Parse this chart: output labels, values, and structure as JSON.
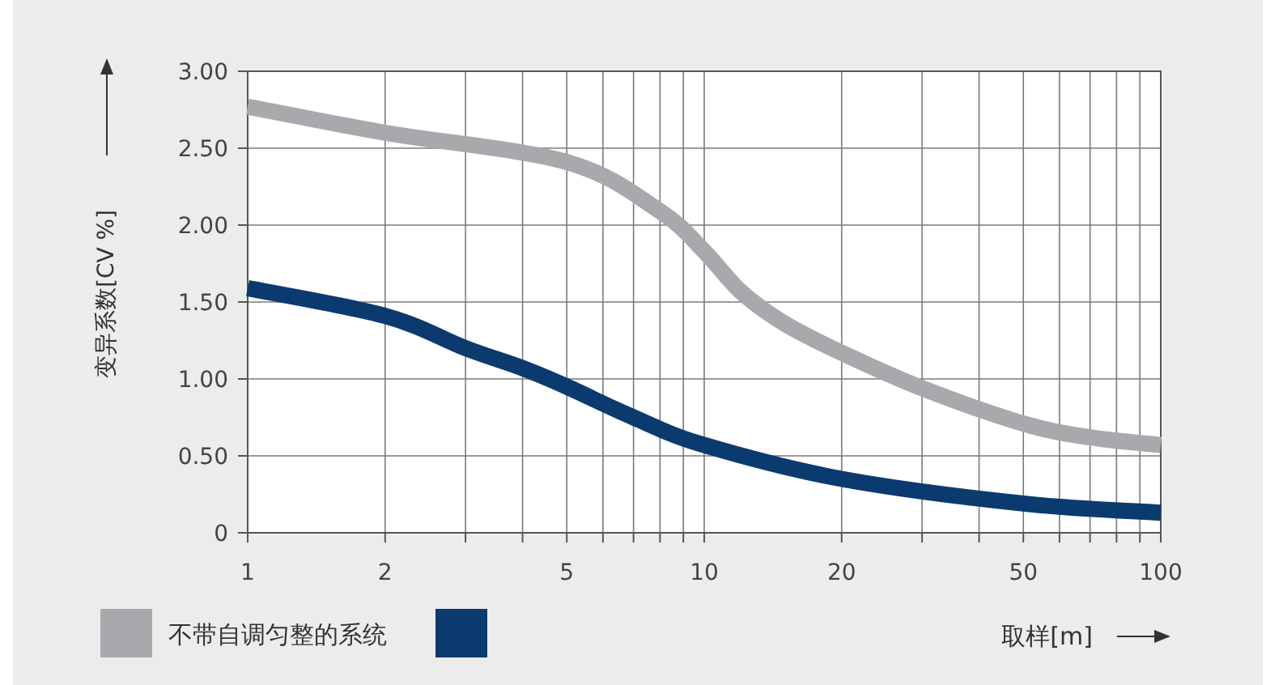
{
  "chart_data": {
    "type": "line",
    "ylabel": "变异系数[CV %]",
    "xlabel": "取样[m]",
    "series": [
      {
        "name": "不带自调匀整的系统",
        "color": "#a7a9ac",
        "x": [
          1,
          2,
          5,
          8,
          10,
          12,
          15,
          20,
          30,
          50,
          70,
          100
        ],
        "values": [
          2.77,
          2.6,
          2.41,
          2.09,
          1.83,
          1.57,
          1.36,
          1.17,
          0.94,
          0.71,
          0.62,
          0.57
        ]
      },
      {
        "color": "#0b3a6e",
        "x": [
          1,
          2,
          3,
          4,
          5,
          7,
          10,
          20,
          50,
          100
        ],
        "values": [
          1.59,
          1.41,
          1.2,
          1.07,
          0.95,
          0.75,
          0.57,
          0.35,
          0.19,
          0.13
        ]
      }
    ],
    "xlim": [
      1,
      100
    ],
    "ylim": [
      0,
      3
    ],
    "xticks": [
      1,
      2,
      {
        "value": 3,
        "label": null
      },
      {
        "value": 4,
        "label": null
      },
      5,
      {
        "value": 6,
        "label": null
      },
      {
        "value": 7,
        "label": null
      },
      {
        "value": 8,
        "label": null
      },
      {
        "value": 9,
        "label": null
      },
      10,
      20,
      {
        "value": 30,
        "label": null
      },
      {
        "value": 40,
        "label": null
      },
      50,
      {
        "value": 60,
        "label": null
      },
      {
        "value": 70,
        "label": null
      },
      {
        "value": 80,
        "label": null
      },
      {
        "value": 90,
        "label": null
      },
      100
    ],
    "yticks": [
      0,
      {
        "value": 0.5,
        "label": "0.50"
      },
      {
        "value": 1,
        "label": "1.00"
      },
      {
        "value": 1.5,
        "label": "1.50"
      },
      {
        "value": 2,
        "label": "2.00"
      },
      {
        "value": 2.5,
        "label": "2.50"
      },
      {
        "value": 3,
        "label": "3.00"
      }
    ],
    "log": "x",
    "grid": true,
    "legend": "bottom left",
    "marker": "none",
    "line_style": "solid"
  }
}
